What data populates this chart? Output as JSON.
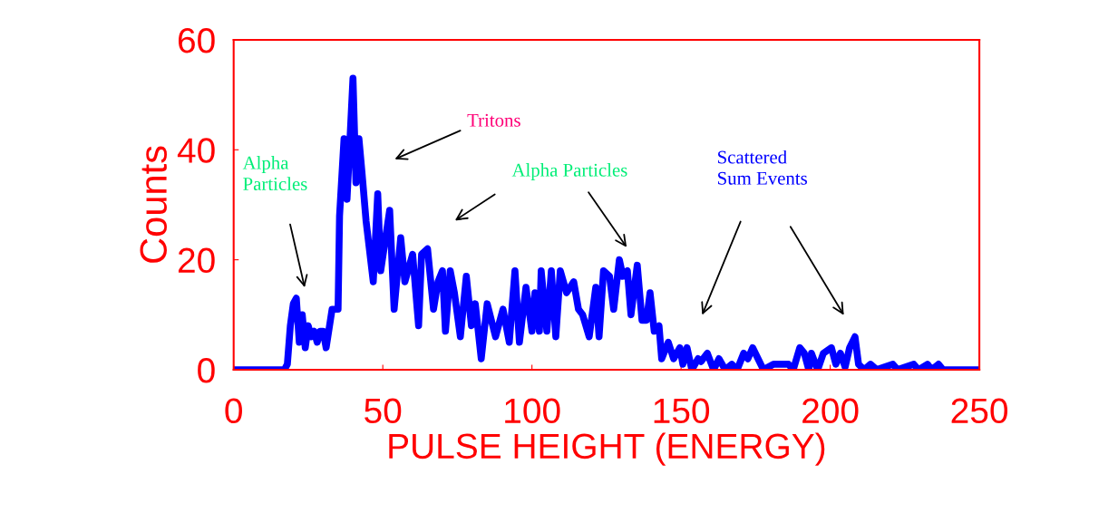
{
  "chart_data": {
    "type": "line",
    "xlabel": "PULSE HEIGHT (ENERGY)",
    "ylabel": "Counts",
    "xlim": [
      0,
      250
    ],
    "xticks": [
      0,
      50,
      100,
      150,
      200,
      250
    ],
    "ylim": [
      0,
      60
    ],
    "yticks": [
      0,
      20,
      40,
      60
    ],
    "grid": false,
    "marker": "none",
    "line_style": "solid",
    "series": [
      {
        "color": "#0000ff",
        "x": [
          0,
          17,
          18,
          19,
          20,
          21,
          22,
          23,
          24,
          25,
          26,
          27,
          28,
          29,
          30,
          31,
          33,
          35,
          35.5,
          37,
          38,
          40,
          41,
          42,
          43,
          44.4,
          46.8,
          48.3,
          49.3,
          52.3,
          53.8,
          56,
          57.4,
          60,
          62,
          63,
          65,
          67,
          68.5,
          70,
          71,
          72.6,
          74,
          76,
          78,
          79.7,
          81,
          83,
          85,
          87.8,
          90.3,
          92.4,
          94.3,
          95.8,
          98,
          100,
          101,
          102.5,
          103.1,
          105,
          106.5,
          108,
          109.5,
          111.6,
          114,
          115.6,
          117,
          119.2,
          121.4,
          122.5,
          124,
          126,
          127.4,
          129.3,
          130.5,
          132,
          133.2,
          135.3,
          136.9,
          138.4,
          139.6,
          141,
          142.6,
          143.5,
          145.7,
          147.5,
          149.6,
          150.6,
          152,
          153.6,
          155.7,
          156.7,
          158.8,
          160.9,
          162.7,
          164.8,
          167,
          168.8,
          171,
          172.4,
          174,
          177.6,
          181,
          186,
          187.6,
          189.8,
          191.3,
          192.8,
          193.7,
          195.8,
          197.7,
          200.4,
          201.9,
          203.4,
          205,
          206.5,
          208.3,
          209.5,
          211.4,
          213.5,
          215.6,
          221,
          222.6,
          228,
          229.6,
          232.6,
          234,
          236.3,
          237.8,
          250
        ],
        "values": [
          0,
          0,
          1,
          8,
          12,
          13,
          5,
          10,
          4,
          8,
          6,
          7,
          5,
          7,
          7,
          4,
          11,
          11,
          28,
          42,
          31,
          53,
          34,
          42,
          36,
          27,
          16,
          32,
          18,
          29,
          11,
          24,
          16,
          21,
          8,
          21,
          22,
          11,
          16,
          18,
          7,
          18,
          14,
          6,
          17,
          8,
          12,
          2,
          12,
          6,
          11,
          5,
          18,
          5,
          15,
          7,
          14,
          7,
          18,
          7,
          18,
          6,
          18,
          14,
          16,
          11,
          10,
          6,
          15,
          6,
          18,
          17,
          11,
          20,
          17,
          18,
          10,
          19,
          9,
          9,
          14,
          7,
          8,
          2,
          5,
          2,
          4,
          1,
          4,
          0,
          2,
          1.5,
          3,
          0,
          2,
          0,
          1,
          0,
          3,
          2,
          4,
          0,
          1,
          1,
          0,
          4,
          3,
          0,
          3,
          0,
          3,
          4,
          1,
          3,
          0.5,
          4,
          6,
          1,
          0,
          1,
          0,
          1,
          0,
          1,
          0,
          1,
          0,
          1,
          0,
          0
        ]
      }
    ],
    "annotations": [
      "Alpha\nParticles",
      "Tritons",
      "Alpha Particles",
      "Scattered\nSum Events"
    ]
  }
}
